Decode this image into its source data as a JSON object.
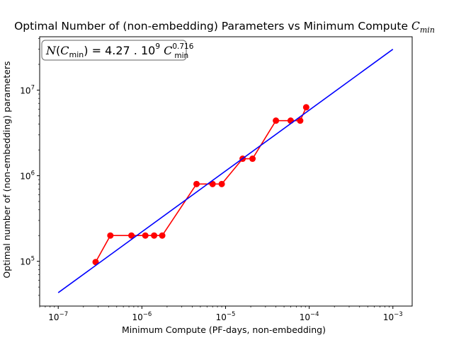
{
  "chart_data": {
    "type": "line",
    "title": "Optimal Number of (non-embedding) Parameters vs Minimum Compute",
    "title_math": "C",
    "title_math_sub": "min",
    "xlabel": "Minimum Compute (PF-days, non-embedding)",
    "ylabel": "Optimal number of (non-embedding) parameters",
    "xscale": "log",
    "yscale": "log",
    "xlim": [
      6e-08,
      0.0017
    ],
    "ylim": [
      30000.0,
      42000000.0
    ],
    "x_ticks": [
      {
        "value": 1e-07,
        "base": "10",
        "exp": "−7"
      },
      {
        "value": 1e-06,
        "base": "10",
        "exp": "−6"
      },
      {
        "value": 1e-05,
        "base": "10",
        "exp": "−5"
      },
      {
        "value": 0.0001,
        "base": "10",
        "exp": "−4"
      },
      {
        "value": 0.001,
        "base": "10",
        "exp": "−3"
      }
    ],
    "y_ticks": [
      {
        "value": 100000.0,
        "base": "10",
        "exp": "5"
      },
      {
        "value": 1000000.0,
        "base": "10",
        "exp": "6"
      },
      {
        "value": 10000000.0,
        "base": "10",
        "exp": "7"
      }
    ],
    "grid": false,
    "series": [
      {
        "color": "#ff0000",
        "marker": "circle",
        "points": [
          [
            2.8e-07,
            98000.0
          ],
          [
            4.2e-07,
            200000.0
          ],
          [
            7.5e-07,
            200000.0
          ],
          [
            1.1e-06,
            200000.0
          ],
          [
            1.4e-06,
            200000.0
          ],
          [
            1.75e-06,
            200000.0
          ],
          [
            4.5e-06,
            800000.0
          ],
          [
            7e-06,
            800000.0
          ],
          [
            9e-06,
            800000.0
          ],
          [
            1.6e-05,
            1580000.0
          ],
          [
            2.1e-05,
            1580000.0
          ],
          [
            4e-05,
            4400000.0
          ],
          [
            6e-05,
            4400000.0
          ],
          [
            7.8e-05,
            4400000.0
          ],
          [
            9.2e-05,
            6300000.0
          ]
        ]
      },
      {
        "color": "#0000ff",
        "marker": "none",
        "points": [
          [
            1e-07,
            43000.0
          ],
          [
            0.001,
            30000000.0
          ]
        ]
      }
    ],
    "annotation": {
      "lhs_var": "N",
      "lhs_arg": "C",
      "lhs_arg_sub": "min",
      "eq": " = 4.27 . 10",
      "eq_exp": "9",
      "rhs_var": " C",
      "rhs_exp": "0.716",
      "rhs_sub": "min",
      "placement": "top-left"
    }
  }
}
